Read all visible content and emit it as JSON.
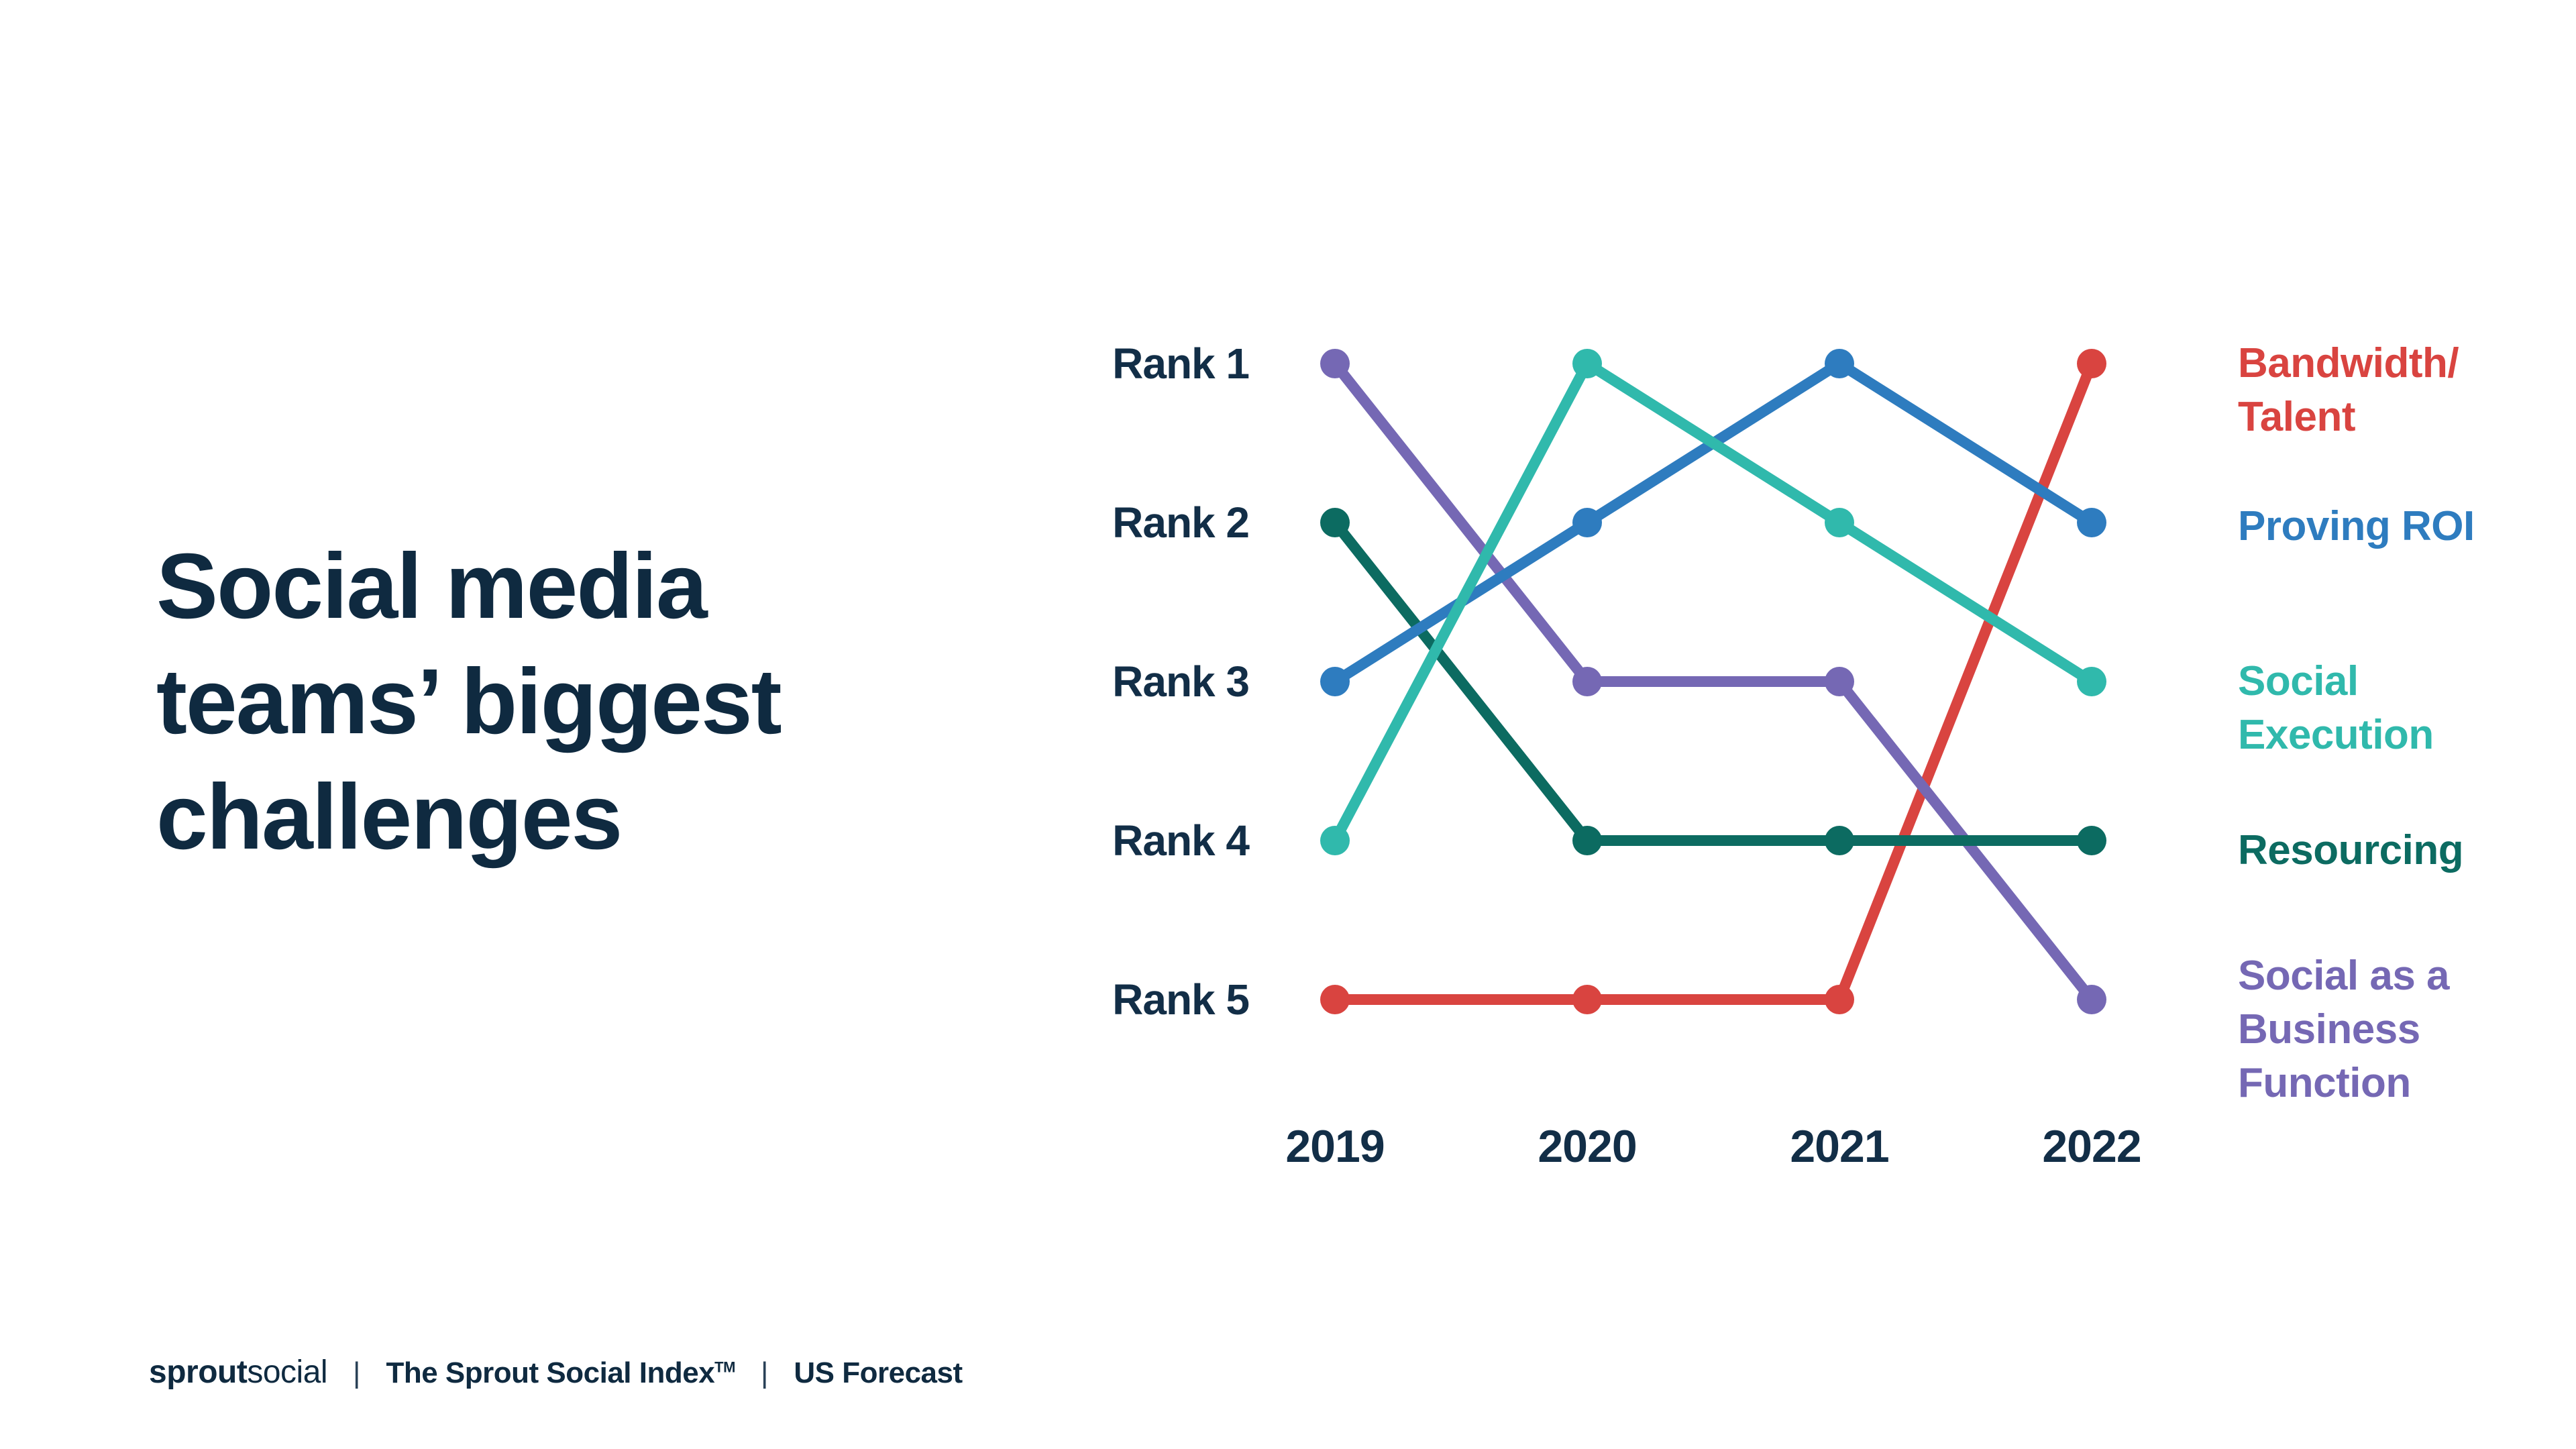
{
  "title": {
    "full": "Social media teams’ biggest challenges",
    "lines": [
      "Social media",
      "teams’ biggest",
      "challenges"
    ]
  },
  "chart_data": {
    "type": "line",
    "variant": "bump-rank",
    "title": "Social media teams’ biggest challenges",
    "x": [
      "2019",
      "2020",
      "2021",
      "2022"
    ],
    "y_axis": {
      "labels": [
        "Rank 1",
        "Rank 2",
        "Rank 3",
        "Rank 4",
        "Rank 5"
      ],
      "direction": "rank-1-at-top"
    },
    "series": [
      {
        "name": "Bandwidth/Talent",
        "color": "#D94440",
        "ranks": [
          5,
          5,
          5,
          1
        ]
      },
      {
        "name": "Proving ROI",
        "color": "#2E7CBF",
        "ranks": [
          3,
          2,
          1,
          2
        ]
      },
      {
        "name": "Social Execution",
        "color": "#30B9AC",
        "ranks": [
          4,
          1,
          2,
          3
        ]
      },
      {
        "name": "Resourcing",
        "color": "#0C6B61",
        "ranks": [
          2,
          4,
          4,
          4
        ]
      },
      {
        "name": "Social as a Business Function",
        "color": "#7568B4",
        "ranks": [
          1,
          3,
          3,
          5
        ]
      }
    ],
    "legend_position": "right",
    "grid": false
  },
  "legend": {
    "items": [
      {
        "series": 0,
        "lines": [
          "Bandwidth/",
          "Talent"
        ]
      },
      {
        "series": 1,
        "lines": [
          "Proving ROI"
        ]
      },
      {
        "series": 2,
        "lines": [
          "Social",
          "Execution"
        ]
      },
      {
        "series": 3,
        "lines": [
          "Resourcing"
        ]
      },
      {
        "series": 4,
        "lines": [
          "Social as a",
          "Business",
          "Function"
        ]
      }
    ]
  },
  "footer": {
    "brand_bold": "sprout",
    "brand_light": "social",
    "divider": "|",
    "index_title": "The Sprout Social Index",
    "index_tm": "TM",
    "forecast": "US Forecast"
  },
  "colors": {
    "background": "#FFFFFF",
    "text_navy": "#0F2A40"
  }
}
